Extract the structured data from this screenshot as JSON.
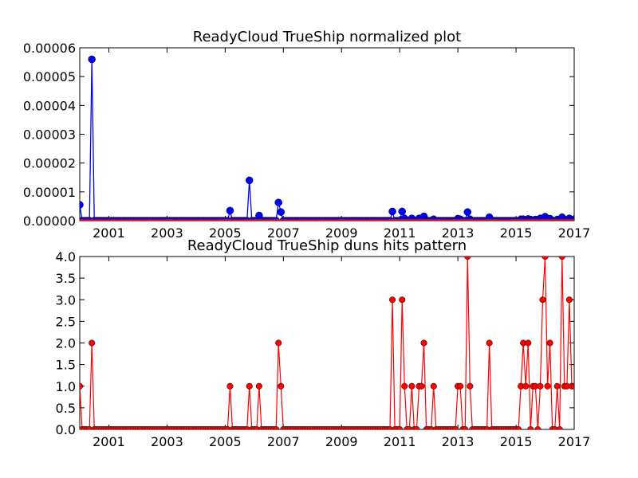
{
  "chart_data": [
    {
      "type": "line",
      "title": "ReadyCloud TrueShip normalized plot",
      "xlabel": "",
      "ylabel": "",
      "xlim": [
        2000.0,
        2017.0
      ],
      "ylim": [
        0,
        6e-05
      ],
      "grid": false,
      "x_ticks": [
        2001,
        2003,
        2005,
        2007,
        2009,
        2011,
        2013,
        2015,
        2017
      ],
      "x_tick_labels": [
        "2001",
        "2003",
        "2005",
        "2007",
        "2009",
        "2011",
        "2013",
        "2015",
        "2017"
      ],
      "y_ticks": [
        0,
        1e-05,
        2e-05,
        3e-05,
        4e-05,
        5e-05,
        6e-05
      ],
      "y_tick_labels": [
        "0.00000",
        "0.00001",
        "0.00002",
        "0.00003",
        "0.00004",
        "0.00005",
        "0.00006"
      ],
      "series": [
        {
          "color": "#0000ff",
          "marker": "circle",
          "points": [
            [
              2000.0,
              5.5e-06
            ],
            [
              2000.42,
              5.6e-05
            ],
            [
              2005.17,
              3.5e-06
            ],
            [
              2005.83,
              1.4e-05
            ],
            [
              2006.17,
              1.8e-06
            ],
            [
              2006.83,
              6.3e-06
            ],
            [
              2006.92,
              3e-06
            ],
            [
              2010.75,
              3.2e-06
            ],
            [
              2011.08,
              3.2e-06
            ],
            [
              2011.17,
              8e-07
            ],
            [
              2011.42,
              8e-07
            ],
            [
              2011.67,
              8e-07
            ],
            [
              2011.83,
              1.5e-06
            ],
            [
              2012.17,
              5e-07
            ],
            [
              2013.0,
              7e-07
            ],
            [
              2013.08,
              5e-07
            ],
            [
              2013.33,
              3e-06
            ],
            [
              2013.42,
              5e-07
            ],
            [
              2014.08,
              1.2e-06
            ],
            [
              2015.17,
              5e-07
            ],
            [
              2015.25,
              5e-07
            ],
            [
              2015.42,
              6e-07
            ],
            [
              2015.5,
              4e-07
            ],
            [
              2015.67,
              4e-07
            ],
            [
              2015.83,
              8e-07
            ],
            [
              2016.0,
              1.4e-06
            ],
            [
              2016.08,
              5e-07
            ],
            [
              2016.17,
              7e-07
            ],
            [
              2016.42,
              4e-07
            ],
            [
              2016.58,
              1.2e-06
            ],
            [
              2016.67,
              3e-07
            ],
            [
              2016.75,
              3e-07
            ],
            [
              2016.83,
              8e-07
            ],
            [
              2016.92,
              3e-07
            ],
            [
              2017.0,
              3e-07
            ],
            [
              2017.08,
              1.2e-06
            ]
          ]
        },
        {
          "color": "#ff0000",
          "marker": "none",
          "points": [
            [
              2000.0,
              2e-07
            ],
            [
              2017.08,
              2e-07
            ]
          ]
        }
      ]
    },
    {
      "type": "line",
      "title": "ReadyCloud TrueShip duns hits pattern",
      "xlabel": "",
      "ylabel": "",
      "xlim": [
        2000.0,
        2017.0
      ],
      "ylim": [
        0,
        4
      ],
      "grid": false,
      "x_ticks": [
        2001,
        2003,
        2005,
        2007,
        2009,
        2011,
        2013,
        2015,
        2017
      ],
      "x_tick_labels": [
        "2001",
        "2003",
        "2005",
        "2007",
        "2009",
        "2011",
        "2013",
        "2015",
        "2017"
      ],
      "y_ticks": [
        0,
        0.5,
        1,
        1.5,
        2,
        2.5,
        3,
        3.5,
        4
      ],
      "y_tick_labels": [
        "0.0",
        "0.5",
        "1.0",
        "1.5",
        "2.0",
        "2.5",
        "3.0",
        "3.5",
        "4.0"
      ],
      "series": [
        {
          "color": "#ff0000",
          "marker": "circle",
          "monthly_start": 2000.0,
          "step": 0.0833333,
          "nonzero": [
            [
              2000.0,
              1
            ],
            [
              2000.42,
              2
            ],
            [
              2005.17,
              1
            ],
            [
              2005.83,
              1
            ],
            [
              2006.17,
              1
            ],
            [
              2006.83,
              2
            ],
            [
              2006.92,
              1
            ],
            [
              2010.75,
              3
            ],
            [
              2011.08,
              3
            ],
            [
              2011.17,
              1
            ],
            [
              2011.42,
              1
            ],
            [
              2011.67,
              1
            ],
            [
              2011.75,
              1
            ],
            [
              2011.83,
              2
            ],
            [
              2012.17,
              1
            ],
            [
              2013.0,
              1
            ],
            [
              2013.08,
              1
            ],
            [
              2013.33,
              4
            ],
            [
              2013.42,
              1
            ],
            [
              2014.08,
              2
            ],
            [
              2015.17,
              1
            ],
            [
              2015.25,
              2
            ],
            [
              2015.33,
              1
            ],
            [
              2015.42,
              2
            ],
            [
              2015.58,
              1
            ],
            [
              2015.67,
              1
            ],
            [
              2015.83,
              1
            ],
            [
              2015.92,
              3
            ],
            [
              2016.0,
              4
            ],
            [
              2016.08,
              1
            ],
            [
              2016.17,
              2
            ],
            [
              2016.42,
              1
            ],
            [
              2016.58,
              4
            ],
            [
              2016.67,
              1
            ],
            [
              2016.75,
              1
            ],
            [
              2016.83,
              3
            ],
            [
              2016.92,
              1
            ],
            [
              2017.0,
              1
            ],
            [
              2017.08,
              1
            ],
            [
              2017.17,
              4
            ]
          ]
        }
      ]
    }
  ]
}
